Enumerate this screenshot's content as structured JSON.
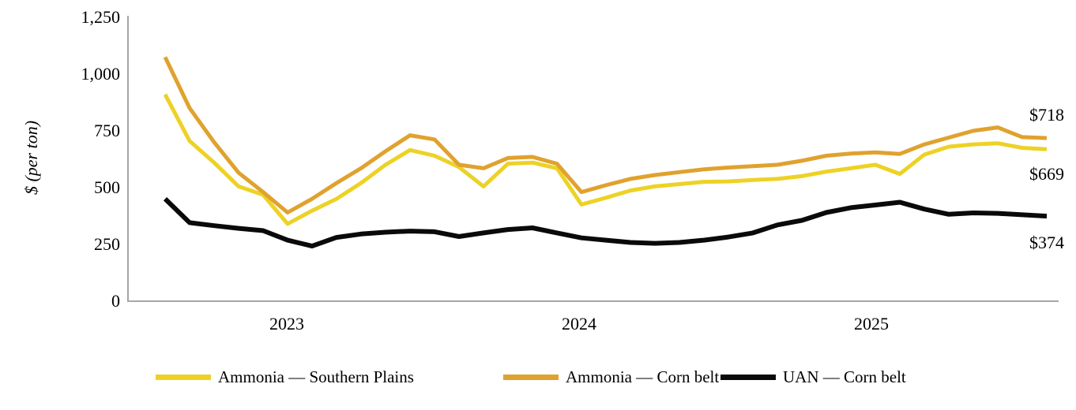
{
  "chart_data": {
    "type": "line",
    "title": "",
    "ylabel": "$ (per ton)",
    "ylim": [
      0,
      1250
    ],
    "y_ticks": [
      "0",
      "250",
      "500",
      "750",
      "1,000",
      "1,250"
    ],
    "grid": false,
    "legend_position": "bottom",
    "n_points": 37,
    "x_type": "monthly index 0-36",
    "x_tick_labels": [
      {
        "label": "2023",
        "index": 5
      },
      {
        "label": "2024",
        "index": 17
      },
      {
        "label": "2025",
        "index": 29
      }
    ],
    "series": [
      {
        "name": "Ammonia — Southern Plains",
        "color": "#EDD226",
        "end_label": "$669",
        "end_value": 669,
        "values": [
          910,
          705,
          610,
          505,
          468,
          340,
          398,
          450,
          520,
          600,
          665,
          640,
          590,
          505,
          605,
          610,
          585,
          425,
          455,
          487,
          505,
          515,
          525,
          527,
          533,
          538,
          550,
          570,
          585,
          600,
          560,
          645,
          680,
          690,
          695,
          675,
          669
        ]
      },
      {
        "name": "Ammonia — Corn belt",
        "color": "#E0A22E",
        "end_label": "$718",
        "end_value": 718,
        "values": [
          1075,
          850,
          700,
          565,
          480,
          390,
          450,
          520,
          585,
          660,
          730,
          712,
          600,
          585,
          630,
          635,
          605,
          480,
          510,
          538,
          555,
          568,
          580,
          588,
          594,
          600,
          618,
          640,
          650,
          655,
          648,
          690,
          720,
          750,
          765,
          722,
          718
        ]
      },
      {
        "name": "UAN — Corn belt",
        "color": "#0A0A0A",
        "end_label": "$374",
        "end_value": 374,
        "values": [
          450,
          345,
          332,
          320,
          310,
          268,
          242,
          280,
          295,
          303,
          308,
          305,
          284,
          300,
          315,
          322,
          300,
          278,
          268,
          258,
          254,
          258,
          268,
          282,
          300,
          335,
          355,
          390,
          411,
          423,
          435,
          405,
          382,
          388,
          386,
          380,
          374
        ]
      }
    ]
  },
  "axis": {
    "line_color": "#A6A6A6"
  },
  "legend": {
    "items": [
      {
        "label": "Ammonia — Southern Plains",
        "color": "#EDD226"
      },
      {
        "label": "Ammonia — Corn belt",
        "color": "#E0A22E"
      },
      {
        "label": "UAN — Corn belt",
        "color": "#0A0A0A"
      }
    ]
  }
}
